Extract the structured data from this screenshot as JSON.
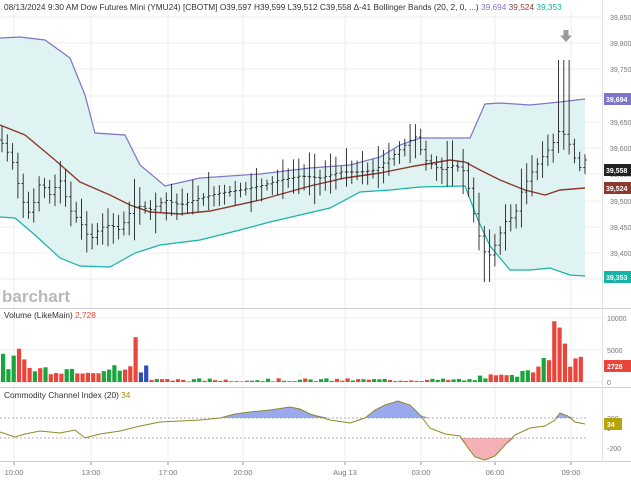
{
  "header": {
    "date_time": "08/13/2024 9:30 AM",
    "instrument": "Dow Futures Mini (YMU24) [CBOTM]",
    "ohlc": "O39,597 H39,599 L39,512 C39,558 Δ-41",
    "indicator_label": "Bollinger Bands",
    "indicator_params": "(20, 2, 0, ...)",
    "bb_upper": "39,694",
    "bb_mid": "39,524",
    "bb_lower": "39,353"
  },
  "watermark": "barchart",
  "colors": {
    "candle": "#222222",
    "bb_upper": "#7e74c8",
    "bb_mid": "#8b3a2e",
    "bb_lower": "#15b3a8",
    "bb_fill": "#dff3f2",
    "vol_up": "#19a53c",
    "vol_down": "#e8463a",
    "vol_neutral": "#2b4fb5",
    "cci_line": "#8a8a2a",
    "cci_pos_fill": "#9aa9ee",
    "cci_neg_fill": "#f3b1b5",
    "last_price_badge": "#222222",
    "price_axis_text": "#777777"
  },
  "price_axis": {
    "ticks": [
      "39,850",
      "39,800",
      "39,750",
      "39,700",
      "39,650",
      "39,600",
      "39,550",
      "39,500",
      "39,450",
      "39,400",
      "39,350"
    ],
    "badge_upper": "39,694",
    "badge_last": "39,558",
    "badge_mid": "39,524",
    "badge_lower": "39,353"
  },
  "volume_panel": {
    "title": "Volume",
    "subtitle": "(LikeMain)",
    "last_value": "2,728",
    "axis_ticks": [
      "10000",
      "5000",
      "0"
    ],
    "badge": "2728"
  },
  "cci_panel": {
    "title": "Commodity Channel Index",
    "param": "(20)",
    "last_value": "34",
    "axis_ticks": [
      "200",
      "0",
      "-200"
    ],
    "badge": "34"
  },
  "time_axis": {
    "labels": [
      "10:00",
      "13:00",
      "17:00",
      "20:00",
      "Aug 13",
      "03:00",
      "06:00",
      "09:00"
    ]
  },
  "chart_data": {
    "type": "candlestick",
    "price_range": [
      39325,
      39875
    ],
    "bb_upper_value": 39694,
    "bb_mid_value": 39524,
    "bb_lower_value": 39353,
    "last_close": 39558,
    "volume_range": [
      0,
      11000
    ],
    "cci_range": [
      -300,
      300
    ]
  }
}
